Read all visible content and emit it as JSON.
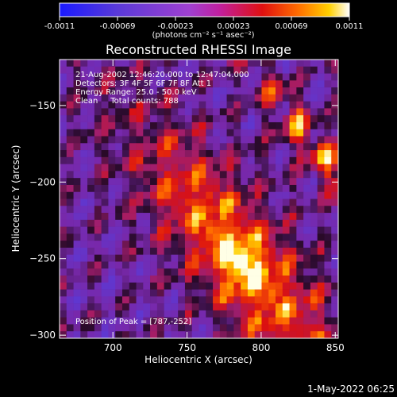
{
  "colorbar": {
    "ticks": [
      "-0.0011",
      "-0.00069",
      "-0.00023",
      "0.00023",
      "0.00069",
      "0.0011"
    ],
    "units_label": "(photons cm⁻² s⁻¹ asec⁻²)",
    "colors": [
      "#1a1aff",
      "#5a3ad8",
      "#a040d0",
      "#c020a0",
      "#e01010",
      "#ff6a00",
      "#ffd000",
      "#ffffff"
    ]
  },
  "chart_data": {
    "type": "heatmap",
    "title": "Reconstructed RHESSI Image",
    "xlabel": "Heliocentric X (arcsec)",
    "ylabel": "Heliocentric Y (arcsec)",
    "xlim": [
      664,
      852
    ],
    "ylim": [
      -302,
      -120
    ],
    "xticks": [
      700,
      750,
      800,
      850
    ],
    "yticks": [
      -150,
      -200,
      -250,
      -300
    ],
    "annotations": [
      "21-Aug-2002 12:46:20.000 to 12:47:04.000",
      "Detectors: 3F 4F 5F 6F 7F 8F Att 1",
      "Energy Range: 25.0 - 50.0 keV",
      "Clean     Total counts: 788"
    ],
    "peak_label": "Position of Peak = [787,-252]",
    "peak": [
      787,
      -252
    ]
  },
  "footer": {
    "date": "1-May-2022 06:25"
  }
}
